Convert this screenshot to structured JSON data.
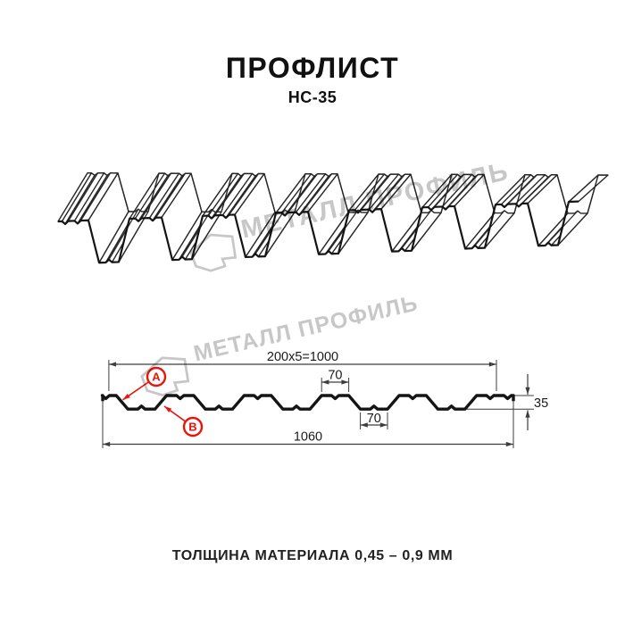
{
  "header": {
    "title": "ПРОФЛИСТ",
    "subtitle": "НС-35"
  },
  "watermark": {
    "text": "МЕТАЛЛ ПРОФИЛЬ"
  },
  "diagram": {
    "dim_cover_width": "200x5=1000",
    "dim_crest_width": "70",
    "dim_trough_width": "70",
    "dim_height": "35",
    "dim_total_width": "1060",
    "callout_a": "A",
    "callout_b": "B"
  },
  "profile": {
    "name": "НС-35",
    "rib_pitch_mm": 200,
    "crest_width_mm": 70,
    "trough_width_mm": 70,
    "height_mm": 35,
    "cover_width_mm": 1000,
    "total_width_mm": 1060
  },
  "footer": {
    "thickness_note": "ТОЛЩИНА МАТЕРИАЛА 0,45 – 0,9 ММ"
  },
  "colors": {
    "line": "#1a1a1a",
    "thin_line": "#3d3d3d",
    "accent_red": "#e8150b",
    "watermark_gray": "#c7c7c7"
  }
}
